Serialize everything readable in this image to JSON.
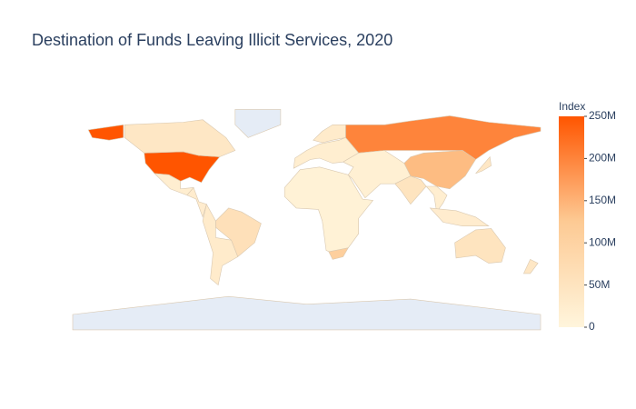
{
  "chart_data": {
    "type": "choropleth",
    "title": "Destination of Funds Leaving Illicit Services, 2020",
    "colorbar_title": "Index",
    "values": [
      250000000,
      40000000,
      null,
      20000000,
      60000000,
      30000000,
      25000000,
      200000000,
      140000000,
      20000000,
      30000000,
      10000000,
      110000000,
      15000000,
      50000000,
      20000000,
      25000000,
      40000000,
      50000000,
      40000000,
      null
    ],
    "zlim": [
      0,
      250000000
    ],
    "zticks": [
      0,
      {
        "value": 50000000,
        "label": "50M"
      },
      {
        "value": 100000000,
        "label": "100M"
      },
      {
        "value": 150000000,
        "label": "150M"
      },
      {
        "value": 200000000,
        "label": "200M"
      },
      {
        "value": 250000000,
        "label": "250M"
      }
    ],
    "colorscale": [
      "#fff5dc",
      "#fdca94",
      "#ff5500"
    ],
    "nan_color": "#e5ecf6",
    "border_color": "#d9c8b0"
  }
}
